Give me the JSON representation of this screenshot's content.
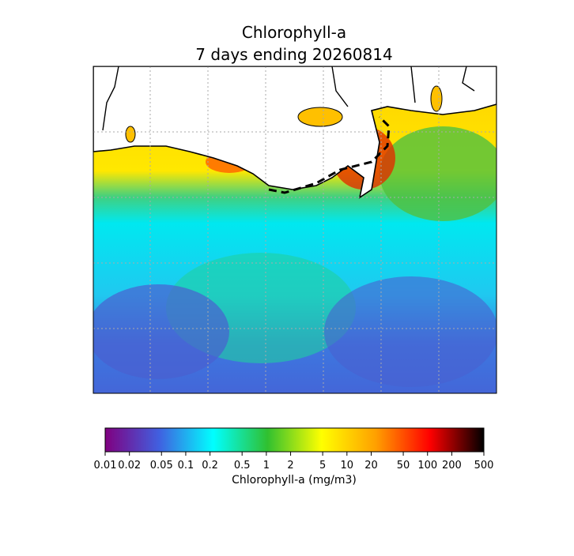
{
  "title": [
    "Chlorophyll-a",
    "7 days ending 20260814"
  ],
  "colorbar": {
    "label": "Chlorophyll-a (mg/m3)",
    "scale": "log",
    "lim": [
      0.01,
      500
    ],
    "ticks": [
      0.01,
      0.02,
      0.05,
      0.1,
      0.2,
      0.5,
      1,
      2,
      5,
      10,
      20,
      50,
      100,
      200,
      500
    ],
    "colors": [
      "#800080",
      "#4060e0",
      "#00ffff",
      "#30c030",
      "#ffff00",
      "#ffa000",
      "#ff0000",
      "#000000"
    ]
  }
}
